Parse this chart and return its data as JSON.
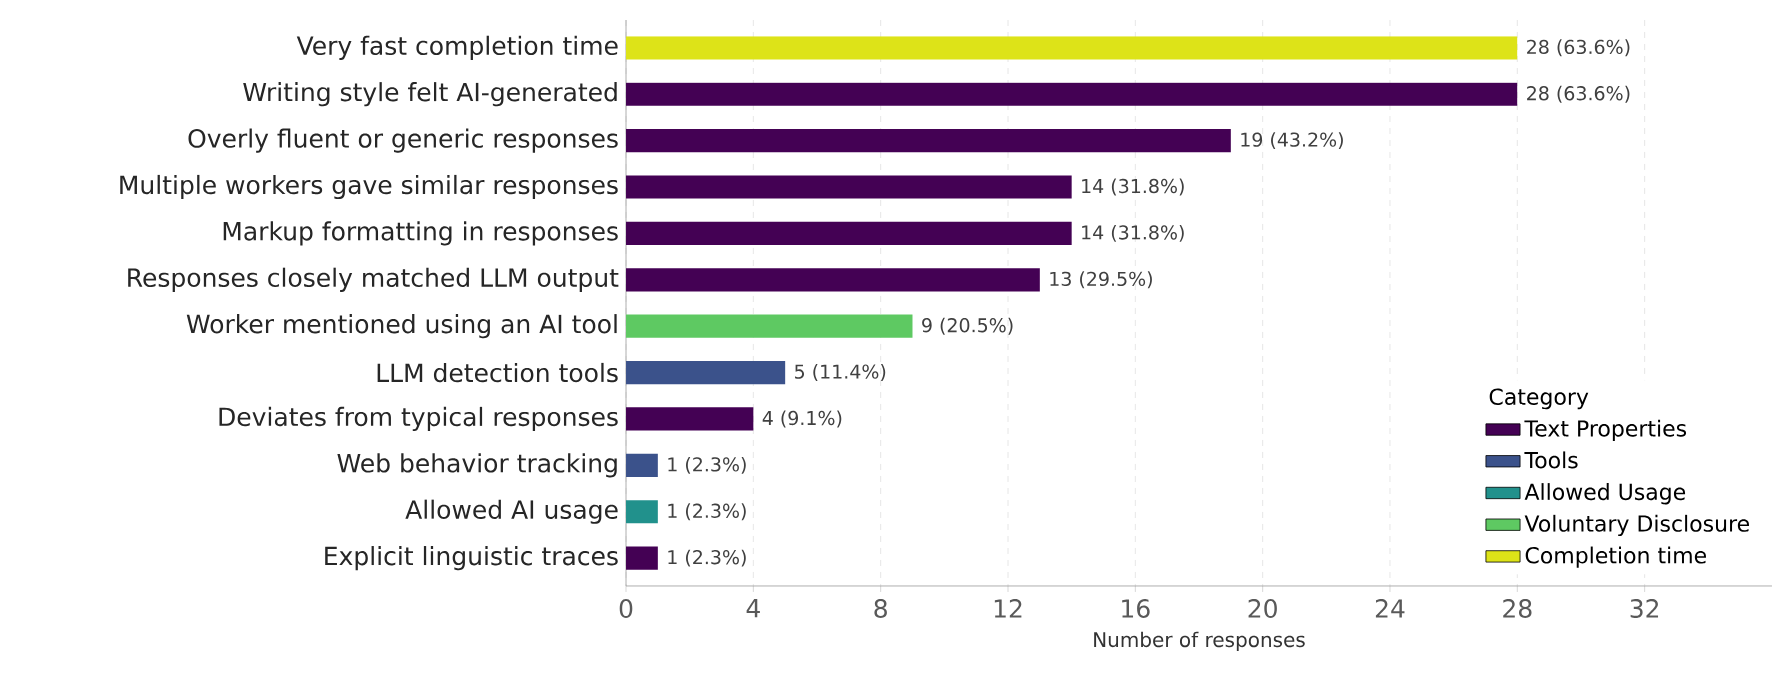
{
  "chart_data": {
    "type": "bar",
    "orientation": "horizontal",
    "xlabel": "Number of responses",
    "legend_title": "Category",
    "categories": [
      "Very fast completion time",
      "Writing style felt AI-generated",
      "Overly fluent or generic responses",
      "Multiple workers gave similar responses",
      "Markup formatting in responses",
      "Responses closely matched LLM output",
      "Worker mentioned using an AI tool",
      "LLM detection tools",
      "Deviates from typical responses",
      "Web behavior tracking",
      "Allowed AI usage",
      "Explicit linguistic traces"
    ],
    "series": [
      {
        "name": "Text Properties",
        "color": "#440154",
        "values": [
          null,
          28,
          19,
          14,
          14,
          13,
          null,
          null,
          4,
          null,
          null,
          1
        ],
        "value_labels": [
          null,
          "28 (63.6%)",
          "19 (43.2%)",
          "14 (31.8%)",
          "14 (31.8%)",
          "13 (29.5%)",
          null,
          null,
          "4 (9.1%)",
          null,
          null,
          "1 (2.3%)"
        ]
      },
      {
        "name": "Tools",
        "color": "#3b528b",
        "values": [
          null,
          null,
          null,
          null,
          null,
          null,
          null,
          5,
          null,
          1,
          null,
          null
        ],
        "value_labels": [
          null,
          null,
          null,
          null,
          null,
          null,
          null,
          "5 (11.4%)",
          null,
          "1 (2.3%)",
          null,
          null
        ]
      },
      {
        "name": "Allowed Usage",
        "color": "#21918c",
        "values": [
          null,
          null,
          null,
          null,
          null,
          null,
          null,
          null,
          null,
          null,
          1,
          null
        ],
        "value_labels": [
          null,
          null,
          null,
          null,
          null,
          null,
          null,
          null,
          null,
          null,
          "1 (2.3%)",
          null
        ]
      },
      {
        "name": "Voluntary Disclosure",
        "color": "#5ec962",
        "values": [
          null,
          null,
          null,
          null,
          null,
          null,
          9,
          null,
          null,
          null,
          null,
          null
        ],
        "value_labels": [
          null,
          null,
          null,
          null,
          null,
          null,
          "9 (20.5%)",
          null,
          null,
          null,
          null,
          null
        ]
      },
      {
        "name": "Completion time",
        "color": "#dde318",
        "values": [
          28,
          null,
          null,
          null,
          null,
          null,
          null,
          null,
          null,
          null,
          null,
          null
        ],
        "value_labels": [
          "28 (63.6%)",
          null,
          null,
          null,
          null,
          null,
          null,
          null,
          null,
          null,
          null,
          null
        ]
      }
    ],
    "xlim": [
      0,
      36
    ],
    "xticks": [
      0,
      4,
      8,
      12,
      16,
      20,
      24,
      28,
      32
    ],
    "grid": "x",
    "legend": "bottom right"
  }
}
